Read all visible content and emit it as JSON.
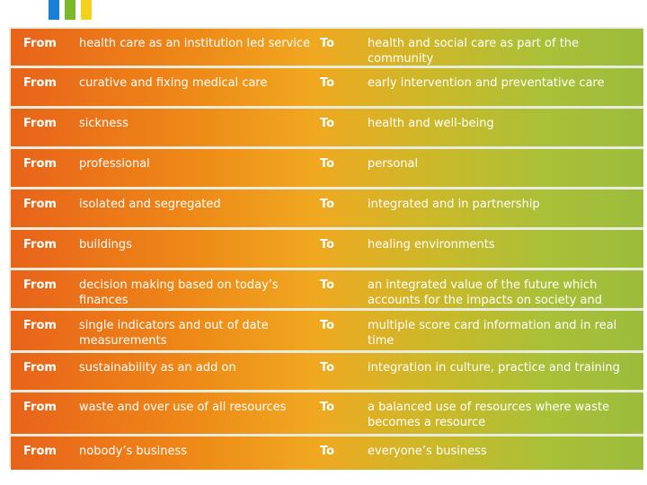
{
  "colors": {
    "accent_blue": "#1a7fd6",
    "accent_green": "#7ab929",
    "accent_yellow": "#f2d21a",
    "gradient_left": "#e8631a",
    "gradient_right": "#9cbc3c",
    "frame": "#e7ecdc"
  },
  "table": {
    "rows": [
      {
        "from_label": "From",
        "old": "health care as an institution led service",
        "to_label": "To",
        "new": "health and social care as part of the community"
      },
      {
        "from_label": "From",
        "old": "curative and fixing medical care",
        "to_label": "To",
        "new": "early intervention and preventative care"
      },
      {
        "from_label": "From",
        "old": "sickness",
        "to_label": "To",
        "new": "health and well-being"
      },
      {
        "from_label": "From",
        "old": "professional",
        "to_label": "To",
        "new": "personal"
      },
      {
        "from_label": "From",
        "old": "isolated and segregated",
        "to_label": "To",
        "new": "integrated and in partnership"
      },
      {
        "from_label": "From",
        "old": "buildings",
        "to_label": "To",
        "new": "healing environments"
      },
      {
        "from_label": "From",
        "old": "decision making based on today’s finances",
        "to_label": "To",
        "new": "an integrated value of the future which accounts for the impacts on society and nature"
      },
      {
        "from_label": "From",
        "old": "single indicators and out of date measurements",
        "to_label": "To",
        "new": "multiple score card information and in real time"
      },
      {
        "from_label": "From",
        "old": "sustainability as an add on",
        "to_label": "To",
        "new": "integration in culture, practice and training"
      },
      {
        "from_label": "From",
        "old": "waste and over use of all resources",
        "to_label": "To",
        "new": "a balanced use of resources where waste becomes a resource"
      },
      {
        "from_label": "From",
        "old": "nobody’s business",
        "to_label": "To",
        "new": "everyone’s business"
      }
    ]
  }
}
